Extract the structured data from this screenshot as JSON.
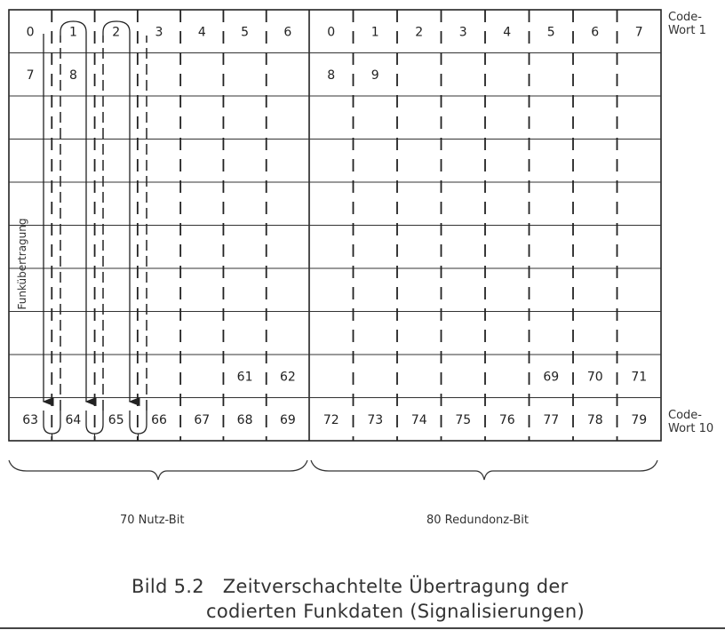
{
  "diagram": {
    "left_block": {
      "rows": [
        [
          "0",
          "1",
          "2",
          "3",
          "4",
          "5",
          "6"
        ],
        [
          "7",
          "8",
          null,
          null,
          null,
          null,
          null
        ],
        [
          null,
          null,
          null,
          null,
          null,
          null,
          null
        ],
        [
          null,
          null,
          null,
          null,
          null,
          null,
          null
        ],
        [
          null,
          null,
          null,
          null,
          null,
          null,
          null
        ],
        [
          null,
          null,
          null,
          null,
          null,
          null,
          null
        ],
        [
          null,
          null,
          null,
          null,
          null,
          null,
          null
        ],
        [
          null,
          null,
          null,
          null,
          null,
          null,
          null
        ],
        [
          null,
          null,
          null,
          null,
          null,
          "61",
          "62"
        ],
        [
          "63",
          "64",
          "65",
          "66",
          "67",
          "68",
          "69"
        ]
      ]
    },
    "right_block": {
      "rows": [
        [
          "0",
          "1",
          "2",
          "3",
          "4",
          "5",
          "6",
          "7"
        ],
        [
          "8",
          "9",
          null,
          null,
          null,
          null,
          null,
          null
        ],
        [
          null,
          null,
          null,
          null,
          null,
          null,
          null,
          null
        ],
        [
          null,
          null,
          null,
          null,
          null,
          null,
          null,
          null
        ],
        [
          null,
          null,
          null,
          null,
          null,
          null,
          null,
          null
        ],
        [
          null,
          null,
          null,
          null,
          null,
          null,
          null,
          null
        ],
        [
          null,
          null,
          null,
          null,
          null,
          null,
          null,
          null
        ],
        [
          null,
          null,
          null,
          null,
          null,
          null,
          null,
          null
        ],
        [
          null,
          null,
          null,
          null,
          null,
          "69",
          "70",
          "71"
        ],
        [
          "72",
          "73",
          "74",
          "75",
          "76",
          "77",
          "78",
          "79"
        ]
      ]
    },
    "arrow_label": "Funkübertragung",
    "codeword_first": "Code-\nWort 1",
    "codeword_last": "Code-\nWort 10",
    "brace_left_label": "70 Nutz-Bit",
    "brace_right_label": "80 Redundonz-Bit"
  },
  "caption": {
    "line1": "Bild 5.2   Zeitverschachtelte Übertragung der",
    "line2": "codierten Funkdaten (Signalisierungen)"
  }
}
